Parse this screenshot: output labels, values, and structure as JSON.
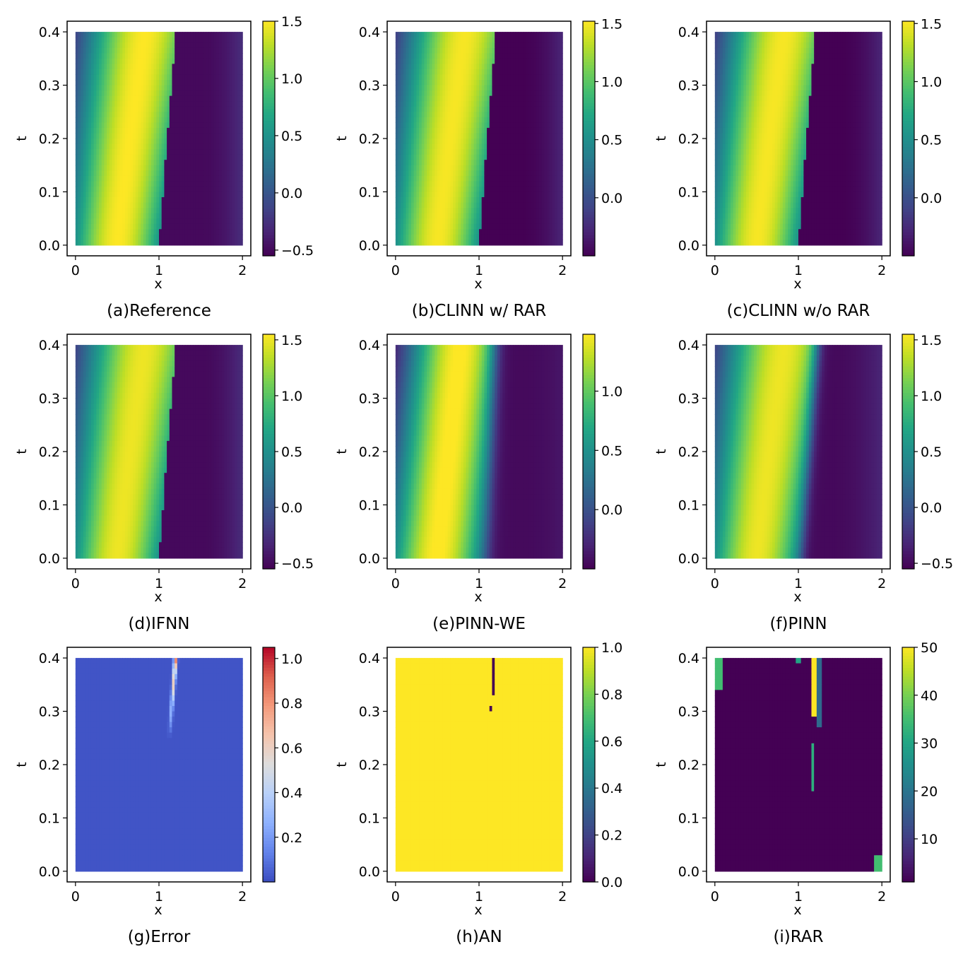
{
  "chart_data": [
    {
      "type": "heatmap",
      "caption": "(a)Reference",
      "xlabel": "x",
      "ylabel": "t",
      "xlim": [
        -0.1,
        2.1
      ],
      "ylim": [
        -0.02,
        0.42
      ],
      "xticks": [
        "0",
        "1",
        "2"
      ],
      "yticks": [
        "0.0",
        "0.1",
        "0.2",
        "0.3",
        "0.4"
      ],
      "field": "solution",
      "colormap": "viridis",
      "colorbar": {
        "min": -0.55,
        "max": 1.5,
        "ticks": [
          "−0.5",
          "0.0",
          "0.5",
          "1.0",
          "1.5"
        ],
        "tick_values": [
          -0.5,
          0.0,
          0.5,
          1.0,
          1.5
        ]
      }
    },
    {
      "type": "heatmap",
      "caption": "(b)CLINN w/ RAR",
      "xlabel": "x",
      "ylabel": "t",
      "xlim": [
        -0.1,
        2.1
      ],
      "ylim": [
        -0.02,
        0.42
      ],
      "xticks": [
        "0",
        "1",
        "2"
      ],
      "yticks": [
        "0.0",
        "0.1",
        "0.2",
        "0.3",
        "0.4"
      ],
      "field": "solution",
      "colormap": "viridis",
      "colorbar": {
        "min": -0.5,
        "max": 1.52,
        "ticks": [
          "0.0",
          "0.5",
          "1.0",
          "1.5"
        ],
        "tick_values": [
          0.0,
          0.5,
          1.0,
          1.5
        ]
      }
    },
    {
      "type": "heatmap",
      "caption": "(c)CLINN w/o RAR",
      "xlabel": "x",
      "ylabel": "t",
      "xlim": [
        -0.1,
        2.1
      ],
      "ylim": [
        -0.02,
        0.42
      ],
      "xticks": [
        "0",
        "1",
        "2"
      ],
      "yticks": [
        "0.0",
        "0.1",
        "0.2",
        "0.3",
        "0.4"
      ],
      "field": "solution",
      "colormap": "viridis",
      "colorbar": {
        "min": -0.5,
        "max": 1.52,
        "ticks": [
          "0.0",
          "0.5",
          "1.0",
          "1.5"
        ],
        "tick_values": [
          0.0,
          0.5,
          1.0,
          1.5
        ]
      }
    },
    {
      "type": "heatmap",
      "caption": "(d)IFNN",
      "xlabel": "x",
      "ylabel": "t",
      "xlim": [
        -0.1,
        2.1
      ],
      "ylim": [
        -0.02,
        0.42
      ],
      "xticks": [
        "0",
        "1",
        "2"
      ],
      "yticks": [
        "0.0",
        "0.1",
        "0.2",
        "0.3",
        "0.4"
      ],
      "field": "solution",
      "colormap": "viridis",
      "colorbar": {
        "min": -0.55,
        "max": 1.55,
        "ticks": [
          "−0.5",
          "0.0",
          "0.5",
          "1.0",
          "1.5"
        ],
        "tick_values": [
          -0.5,
          0.0,
          0.5,
          1.0,
          1.5
        ]
      }
    },
    {
      "type": "heatmap",
      "caption": "(e)PINN-WE",
      "xlabel": "x",
      "ylabel": "t",
      "xlim": [
        -0.1,
        2.1
      ],
      "ylim": [
        -0.02,
        0.42
      ],
      "xticks": [
        "0",
        "1",
        "2"
      ],
      "yticks": [
        "0.0",
        "0.1",
        "0.2",
        "0.3",
        "0.4"
      ],
      "field": "solution_smooth",
      "colormap": "viridis",
      "colorbar": {
        "min": -0.5,
        "max": 1.48,
        "ticks": [
          "0.0",
          "0.5",
          "1.0"
        ],
        "tick_values": [
          0.0,
          0.5,
          1.0
        ]
      }
    },
    {
      "type": "heatmap",
      "caption": "(f)PINN",
      "xlabel": "x",
      "ylabel": "t",
      "xlim": [
        -0.1,
        2.1
      ],
      "ylim": [
        -0.02,
        0.42
      ],
      "xticks": [
        "0",
        "1",
        "2"
      ],
      "yticks": [
        "0.0",
        "0.1",
        "0.2",
        "0.3",
        "0.4"
      ],
      "field": "solution_pinn",
      "colormap": "viridis",
      "colorbar": {
        "min": -0.55,
        "max": 1.55,
        "ticks": [
          "−0.5",
          "0.0",
          "0.5",
          "1.0",
          "1.5"
        ],
        "tick_values": [
          -0.5,
          0.0,
          0.5,
          1.0,
          1.5
        ]
      }
    },
    {
      "type": "heatmap",
      "caption": "(g)Error",
      "xlabel": "x",
      "ylabel": "t",
      "xlim": [
        -0.1,
        2.1
      ],
      "ylim": [
        -0.02,
        0.42
      ],
      "xticks": [
        "0",
        "1",
        "2"
      ],
      "yticks": [
        "0.0",
        "0.1",
        "0.2",
        "0.3",
        "0.4"
      ],
      "field": "error",
      "colormap": "coolwarm",
      "colorbar": {
        "min": 0.0,
        "max": 1.05,
        "ticks": [
          "0.2",
          "0.4",
          "0.6",
          "0.8",
          "1.0"
        ],
        "tick_values": [
          0.2,
          0.4,
          0.6,
          0.8,
          1.0
        ]
      }
    },
    {
      "type": "heatmap",
      "caption": "(h)AN",
      "xlabel": "x",
      "ylabel": "t",
      "xlim": [
        -0.1,
        2.1
      ],
      "ylim": [
        -0.02,
        0.42
      ],
      "xticks": [
        "0",
        "1",
        "2"
      ],
      "yticks": [
        "0.0",
        "0.1",
        "0.2",
        "0.3",
        "0.4"
      ],
      "field": "an",
      "colormap": "viridis",
      "colorbar": {
        "min": 0.0,
        "max": 1.0,
        "ticks": [
          "0.0",
          "0.2",
          "0.4",
          "0.6",
          "0.8",
          "1.0"
        ],
        "tick_values": [
          0.0,
          0.2,
          0.4,
          0.6,
          0.8,
          1.0
        ]
      }
    },
    {
      "type": "heatmap",
      "caption": "(i)RAR",
      "xlabel": "x",
      "ylabel": "t",
      "xlim": [
        -0.1,
        2.1
      ],
      "ylim": [
        -0.02,
        0.42
      ],
      "xticks": [
        "0",
        "1",
        "2"
      ],
      "yticks": [
        "0.0",
        "0.1",
        "0.2",
        "0.3",
        "0.4"
      ],
      "field": "rar",
      "colormap": "viridis",
      "colorbar": {
        "min": 1,
        "max": 50,
        "ticks": [
          "10",
          "20",
          "30",
          "40",
          "50"
        ],
        "tick_values": [
          10,
          20,
          30,
          40,
          50
        ]
      }
    }
  ]
}
